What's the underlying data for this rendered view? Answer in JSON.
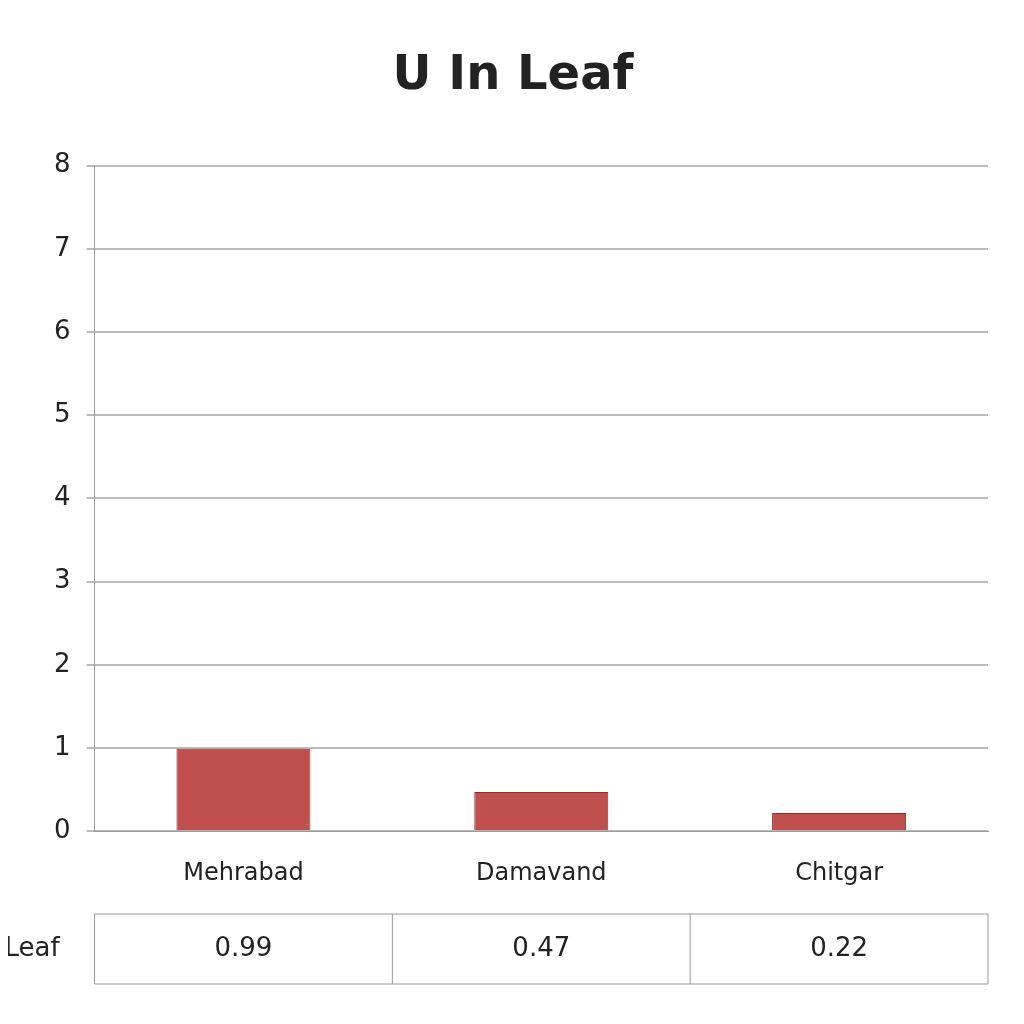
{
  "chart_data": {
    "type": "bar",
    "title": "U In Leaf",
    "categories": [
      "Mehrabad",
      "Damavand",
      "Chitgar"
    ],
    "series": [
      {
        "name": "Leaf",
        "color": "#c0504d",
        "values": [
          0.99,
          0.47,
          0.22
        ]
      }
    ],
    "ylim": [
      0,
      8
    ],
    "yticks": [
      0,
      1,
      2,
      3,
      4,
      5,
      6,
      7,
      8
    ],
    "grid": "y",
    "data_labels": true
  }
}
